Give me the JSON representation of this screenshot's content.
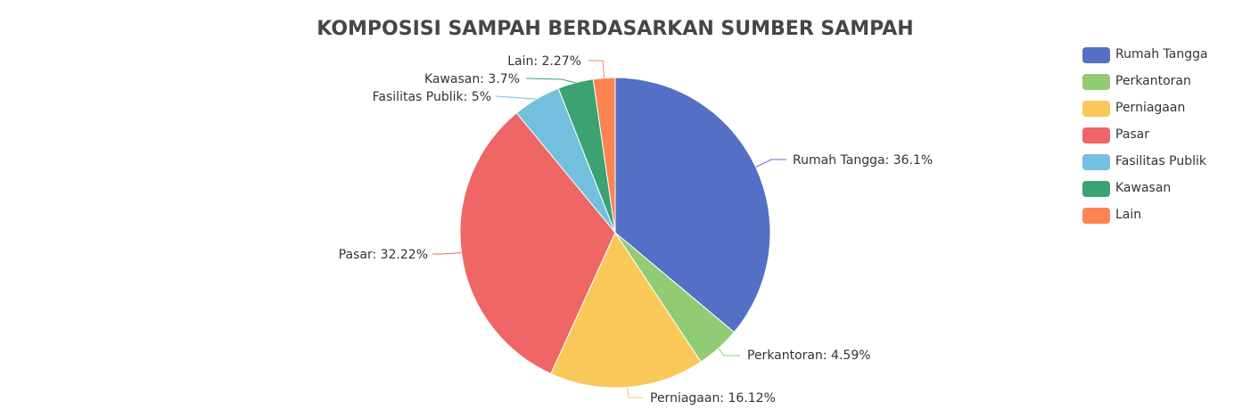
{
  "chart_data": {
    "type": "pie",
    "title": "KOMPOSISI SAMPAH BERDASARKAN SUMBER SAMPAH",
    "slices": [
      {
        "name": "Rumah Tangga",
        "value": 36.1,
        "label": "Rumah Tangga: 36.1%",
        "color": "#5470c6"
      },
      {
        "name": "Perkantoran",
        "value": 4.59,
        "label": "Perkantoran: 4.59%",
        "color": "#91cc75"
      },
      {
        "name": "Perniagaan",
        "value": 16.12,
        "label": "Perniagaan: 16.12%",
        "color": "#fac858"
      },
      {
        "name": "Pasar",
        "value": 32.22,
        "label": "Pasar: 32.22%",
        "color": "#ee6666"
      },
      {
        "name": "Fasilitas Publik",
        "value": 5,
        "label": "Fasilitas Publik: 5%",
        "color": "#73c0de"
      },
      {
        "name": "Kawasan",
        "value": 3.7,
        "label": "Kawasan: 3.7%",
        "color": "#3ba272"
      },
      {
        "name": "Lain",
        "value": 2.27,
        "label": "Lain: 2.27%",
        "color": "#fc8452"
      }
    ],
    "legend_position": "top-right"
  }
}
